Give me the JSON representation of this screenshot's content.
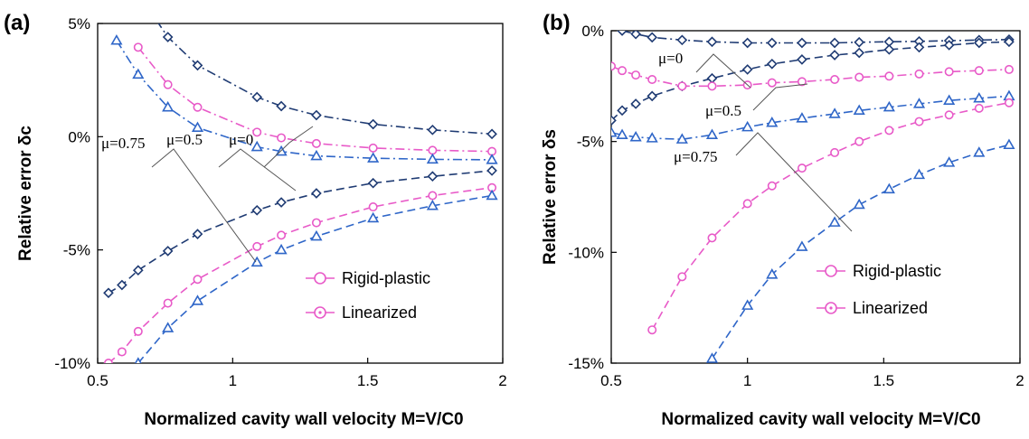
{
  "chart_data": [
    {
      "panel_label": "(a)",
      "type": "line",
      "xlabel": "Normalized cavity wall velocity M=V/C0",
      "ylabel": "Relative error δc",
      "xlim": [
        0.5,
        2
      ],
      "ylim": [
        -10,
        5
      ],
      "xticks": [
        "0.5",
        "1",
        "1.5",
        "2"
      ],
      "yticks": [
        "5%",
        "0%",
        "-5%",
        "-10%"
      ],
      "legend": {
        "placement": "bottom-right",
        "entries": [
          "Rigid-plastic",
          "Linearized"
        ]
      },
      "annotations": [
        "μ=0.75",
        "μ=0.5",
        "μ=0"
      ],
      "series": [
        {
          "mu": "0",
          "family": "upper",
          "marker": "diamond",
          "color": "#1f3b73",
          "style": "dashdot",
          "x": [
            0.68,
            0.76,
            0.87,
            1.09,
            1.18,
            1.31,
            1.52,
            1.74,
            1.96
          ],
          "y": [
            5.8,
            4.4,
            3.15,
            1.75,
            1.35,
            0.95,
            0.55,
            0.3,
            0.12
          ]
        },
        {
          "mu": "0.5",
          "family": "upper",
          "marker": "circle",
          "color": "#e85ac8",
          "style": "dashdot",
          "x": [
            0.65,
            0.76,
            0.87,
            1.09,
            1.18,
            1.31,
            1.52,
            1.74,
            1.96
          ],
          "y": [
            3.95,
            2.3,
            1.3,
            0.2,
            -0.05,
            -0.3,
            -0.5,
            -0.6,
            -0.65
          ]
        },
        {
          "mu": "0.75",
          "family": "upper",
          "marker": "triangle",
          "color": "#2f66c8",
          "style": "dashdot",
          "x": [
            0.57,
            0.65,
            0.76,
            0.87,
            1.09,
            1.18,
            1.31,
            1.52,
            1.74,
            1.96
          ],
          "y": [
            4.25,
            2.75,
            1.3,
            0.4,
            -0.45,
            -0.65,
            -0.85,
            -0.95,
            -1.0,
            -1.02
          ]
        },
        {
          "mu": "0",
          "family": "lower",
          "marker": "diamond",
          "color": "#1f3b73",
          "style": "dash",
          "x": [
            0.54,
            0.59,
            0.65,
            0.76,
            0.87,
            1.09,
            1.18,
            1.31,
            1.52,
            1.74,
            1.96
          ],
          "y": [
            -6.9,
            -6.55,
            -5.9,
            -5.05,
            -4.3,
            -3.25,
            -2.9,
            -2.5,
            -2.05,
            -1.75,
            -1.5
          ]
        },
        {
          "mu": "0.5",
          "family": "lower",
          "marker": "circle",
          "color": "#e85ac8",
          "style": "dash",
          "x": [
            0.54,
            0.59,
            0.65,
            0.76,
            0.87,
            1.09,
            1.18,
            1.31,
            1.52,
            1.74,
            1.96
          ],
          "y": [
            -10.0,
            -9.5,
            -8.6,
            -7.35,
            -6.3,
            -4.85,
            -4.35,
            -3.8,
            -3.1,
            -2.6,
            -2.25
          ]
        },
        {
          "mu": "0.75",
          "family": "lower",
          "marker": "triangle",
          "color": "#2f66c8",
          "style": "dash",
          "x": [
            0.65,
            0.76,
            0.87,
            1.09,
            1.18,
            1.31,
            1.52,
            1.74,
            1.96
          ],
          "y": [
            -10.0,
            -8.45,
            -7.25,
            -5.55,
            -5.0,
            -4.4,
            -3.6,
            -3.05,
            -2.6
          ]
        }
      ]
    },
    {
      "panel_label": "(b)",
      "type": "line",
      "xlabel": "Normalized cavity wall velocity M=V/C0",
      "ylabel": "Relative error δs",
      "xlim": [
        0.5,
        2
      ],
      "ylim": [
        -15,
        0
      ],
      "xticks": [
        "0.5",
        "1",
        "1.5",
        "2"
      ],
      "yticks": [
        "0%",
        "-5%",
        "-10%",
        "-15%"
      ],
      "legend": {
        "placement": "bottom-right",
        "entries": [
          "Rigid-plastic",
          "Linearized"
        ]
      },
      "annotations": [
        "μ=0",
        "μ=0.5",
        "μ=0.75"
      ],
      "series": [
        {
          "mu": "0",
          "family": "upper",
          "marker": "diamond",
          "color": "#1f3b73",
          "style": "dashdot",
          "x": [
            0.54,
            0.59,
            0.65,
            0.76,
            0.87,
            1.0,
            1.09,
            1.2,
            1.32,
            1.41,
            1.52,
            1.63,
            1.74,
            1.85,
            1.96
          ],
          "y": [
            0.0,
            -0.15,
            -0.3,
            -0.42,
            -0.5,
            -0.55,
            -0.55,
            -0.55,
            -0.55,
            -0.52,
            -0.5,
            -0.48,
            -0.45,
            -0.42,
            -0.4
          ]
        },
        {
          "mu": "0",
          "family": "lower",
          "marker": "diamond",
          "color": "#1f3b73",
          "style": "dash",
          "x": [
            0.5,
            0.54,
            0.59,
            0.65,
            0.76,
            0.87,
            1.0,
            1.09,
            1.2,
            1.32,
            1.41,
            1.52,
            1.63,
            1.74,
            1.85,
            1.96
          ],
          "y": [
            -4.05,
            -3.6,
            -3.3,
            -2.95,
            -2.5,
            -2.15,
            -1.75,
            -1.5,
            -1.3,
            -1.1,
            -1.0,
            -0.85,
            -0.75,
            -0.65,
            -0.55,
            -0.5
          ]
        },
        {
          "mu": "0.5",
          "family": "upper",
          "marker": "circle",
          "color": "#e85ac8",
          "style": "dashdot",
          "x": [
            0.5,
            0.54,
            0.59,
            0.65,
            0.76,
            0.87,
            1.0,
            1.09,
            1.2,
            1.32,
            1.41,
            1.52,
            1.63,
            1.74,
            1.85,
            1.96
          ],
          "y": [
            -1.6,
            -1.8,
            -2.0,
            -2.2,
            -2.5,
            -2.5,
            -2.45,
            -2.35,
            -2.3,
            -2.2,
            -2.1,
            -2.05,
            -1.95,
            -1.85,
            -1.8,
            -1.75
          ]
        },
        {
          "mu": "0.75",
          "family": "upper",
          "marker": "triangle",
          "color": "#2f66c8",
          "style": "dashdot",
          "x": [
            0.5,
            0.54,
            0.59,
            0.65,
            0.76,
            0.87,
            1.0,
            1.09,
            1.2,
            1.32,
            1.41,
            1.52,
            1.63,
            1.74,
            1.85,
            1.96
          ],
          "y": [
            -4.6,
            -4.7,
            -4.8,
            -4.85,
            -4.9,
            -4.7,
            -4.35,
            -4.15,
            -3.95,
            -3.75,
            -3.6,
            -3.45,
            -3.3,
            -3.15,
            -3.05,
            -2.95
          ]
        },
        {
          "mu": "0.5",
          "family": "lower",
          "marker": "circle",
          "color": "#e85ac8",
          "style": "dash",
          "x": [
            0.65,
            0.76,
            0.87,
            1.0,
            1.09,
            1.2,
            1.32,
            1.41,
            1.52,
            1.63,
            1.74,
            1.85,
            1.96
          ],
          "y": [
            -13.5,
            -11.1,
            -9.35,
            -7.8,
            -7.0,
            -6.2,
            -5.5,
            -5.0,
            -4.5,
            -4.1,
            -3.8,
            -3.5,
            -3.25
          ]
        },
        {
          "mu": "0.75",
          "family": "lower",
          "marker": "triangle",
          "color": "#2f66c8",
          "style": "dash",
          "x": [
            0.87,
            1.0,
            1.09,
            1.2,
            1.32,
            1.41,
            1.52,
            1.63,
            1.74,
            1.85,
            1.96
          ],
          "y": [
            -14.8,
            -12.4,
            -11.0,
            -9.75,
            -8.65,
            -7.85,
            -7.15,
            -6.5,
            -5.95,
            -5.5,
            -5.15
          ]
        }
      ]
    }
  ],
  "colors": {
    "frame": "#000000",
    "grid": "#444444",
    "legend_marker": "#e85ac8"
  }
}
